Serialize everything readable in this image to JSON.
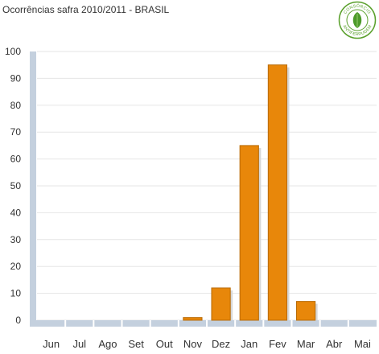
{
  "chart_data": {
    "type": "bar",
    "title": "Ocorrências safra 2010/2011 - BRASIL",
    "categories": [
      "Jun",
      "Jul",
      "Ago",
      "Set",
      "Out",
      "Nov",
      "Dez",
      "Jan",
      "Fev",
      "Mar",
      "Abr",
      "Mai"
    ],
    "values": [
      0,
      0,
      0,
      0,
      0,
      1,
      12,
      65,
      95,
      7,
      0,
      0
    ],
    "ylim": [
      0,
      100
    ],
    "yticks": [
      0,
      10,
      20,
      30,
      40,
      50,
      60,
      70,
      80,
      90,
      100
    ],
    "xlabel": "",
    "ylabel": "",
    "grid": true,
    "colors": {
      "bar": "#E8870A",
      "bar_border": "#B86A05",
      "axis": "#C4D0DE",
      "grid": "#E6E6E6",
      "text": "#333333"
    }
  },
  "logo": {
    "name": "leaf-logo",
    "text_top": "CONSÓRCIO",
    "text_bottom": "ANTIFERRUGEM",
    "colors": {
      "ring": "#5aa02c",
      "leaf": "#4c9a2a"
    }
  }
}
